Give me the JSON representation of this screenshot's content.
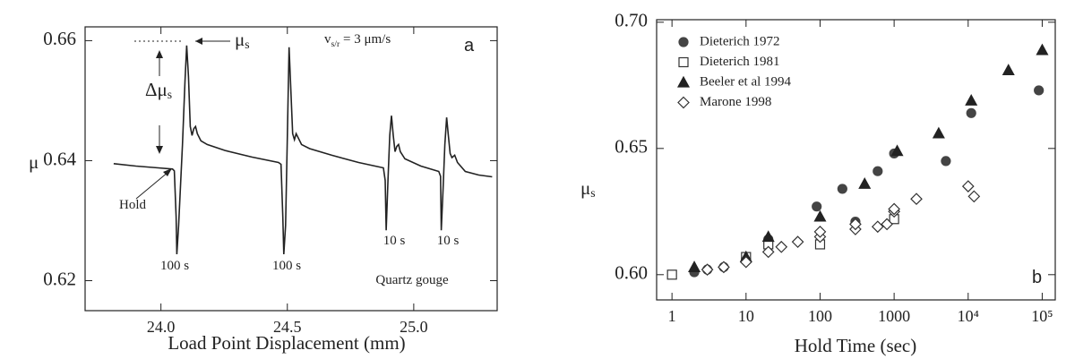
{
  "chart_data": [
    {
      "type": "line",
      "y_label": "μ",
      "x_label": "Load Point Displacement   (mm)",
      "x": [
        23.813,
        23.901,
        23.989,
        24.046,
        24.053,
        24.06,
        24.063,
        24.07,
        24.085,
        24.095,
        24.102,
        24.109,
        24.116,
        24.123,
        24.13,
        24.137,
        24.144,
        24.158,
        24.183,
        24.254,
        24.359,
        24.465,
        24.475,
        24.482,
        24.486,
        24.493,
        24.5,
        24.507,
        24.514,
        24.521,
        24.528,
        24.535,
        24.542,
        24.556,
        24.588,
        24.676,
        24.782,
        24.88,
        24.887,
        24.891,
        24.898,
        24.905,
        24.912,
        24.919,
        24.926,
        24.933,
        24.94,
        24.947,
        24.965,
        25.028,
        25.099,
        25.106,
        25.109,
        25.116,
        25.123,
        25.13,
        25.137,
        25.144,
        25.151,
        25.162,
        25.173,
        25.204,
        25.257,
        25.31
      ],
      "series": [
        {
          "color": "#222222",
          "values": [
            0.6395,
            0.6391,
            0.6388,
            0.6386,
            0.6383,
            0.6307,
            0.6244,
            0.6292,
            0.6427,
            0.6532,
            0.6592,
            0.654,
            0.6457,
            0.6442,
            0.6453,
            0.6457,
            0.6445,
            0.6433,
            0.6427,
            0.6417,
            0.6406,
            0.6397,
            0.6394,
            0.6307,
            0.6244,
            0.6292,
            0.6442,
            0.6589,
            0.6517,
            0.6445,
            0.6435,
            0.6445,
            0.6439,
            0.6427,
            0.642,
            0.6409,
            0.6397,
            0.6388,
            0.6367,
            0.6284,
            0.6367,
            0.6442,
            0.6475,
            0.6442,
            0.6415,
            0.6424,
            0.6427,
            0.6415,
            0.6403,
            0.6391,
            0.6382,
            0.6374,
            0.6284,
            0.6352,
            0.6427,
            0.6472,
            0.6442,
            0.6412,
            0.6405,
            0.6409,
            0.6397,
            0.6382,
            0.6376,
            0.6373
          ]
        }
      ],
      "xlim": [
        23.7,
        25.33
      ],
      "ylim": [
        0.615,
        0.6623
      ],
      "xticks": [
        {
          "value": 24,
          "label": "24.0"
        },
        24.5,
        {
          "value": 25,
          "label": "25.0"
        }
      ],
      "yticks": [
        0.62,
        0.64,
        0.66
      ],
      "annotations": [
        {
          "text": "μ",
          "sub": "s"
        },
        {
          "text": "Δμ",
          "sub": "s"
        },
        {
          "text": "v",
          "sub": "s/r",
          "rest": " = 3 μm/s"
        },
        {
          "text": "a"
        },
        {
          "text": "Hold"
        },
        {
          "text": "100 s"
        },
        {
          "text": "100 s"
        },
        {
          "text": "10 s"
        },
        {
          "text": "10 s"
        },
        {
          "text": "Quartz gouge"
        }
      ]
    },
    {
      "type": "scatter",
      "y_label": {
        "text": "μ",
        "sub": "s"
      },
      "x_label": "Hold Time (sec)",
      "xscale": "log",
      "legend": "upper left",
      "series": [
        {
          "name": "Dieterich 1972",
          "color": "#444444",
          "marker": "circle",
          "filled": true,
          "x": [
            2,
            3,
            5,
            10,
            20,
            90,
            200,
            300,
            600,
            1000,
            5000,
            11000,
            90000
          ],
          "values": [
            0.601,
            0.602,
            0.603,
            0.606,
            0.614,
            0.627,
            0.634,
            0.621,
            0.641,
            0.648,
            0.645,
            0.664,
            0.673
          ]
        },
        {
          "name": "Dieterich 1981",
          "color": "#333333",
          "marker": "square",
          "filled": false,
          "x": [
            1,
            10,
            20,
            100,
            1000
          ],
          "values": [
            0.6,
            0.607,
            0.612,
            0.612,
            0.622
          ]
        },
        {
          "name": "Beeler et al 1994",
          "color": "#222222",
          "marker": "triangle",
          "filled": true,
          "x": [
            2,
            10,
            20,
            100,
            400,
            1100,
            4000,
            11000,
            35000,
            100000
          ],
          "values": [
            0.603,
            0.607,
            0.615,
            0.623,
            0.636,
            0.649,
            0.656,
            0.669,
            0.681,
            0.689
          ]
        },
        {
          "name": "Marone 1998",
          "color": "#333333",
          "marker": "diamond",
          "filled": false,
          "x": [
            3,
            5,
            10,
            20,
            30,
            50,
            100,
            100,
            300,
            300,
            600,
            800,
            1000,
            1000,
            2000,
            10000,
            12000
          ],
          "values": [
            0.602,
            0.603,
            0.605,
            0.609,
            0.611,
            0.613,
            0.615,
            0.617,
            0.618,
            0.62,
            0.619,
            0.62,
            0.625,
            0.626,
            0.63,
            0.635,
            0.631
          ]
        }
      ],
      "xlim": [
        0.62,
        150000
      ],
      "ylim": [
        0.59,
        0.701
      ],
      "xticks": [
        1,
        10,
        100,
        1000,
        {
          "value": 10000,
          "label": "10⁴"
        },
        {
          "value": 100000,
          "label": "10⁵"
        }
      ],
      "yticks": [
        {
          "value": 0.6,
          "label": "0.60"
        },
        0.65,
        {
          "value": 0.7,
          "label": "0.70"
        }
      ],
      "annotations": [
        {
          "text": "b"
        }
      ]
    }
  ]
}
